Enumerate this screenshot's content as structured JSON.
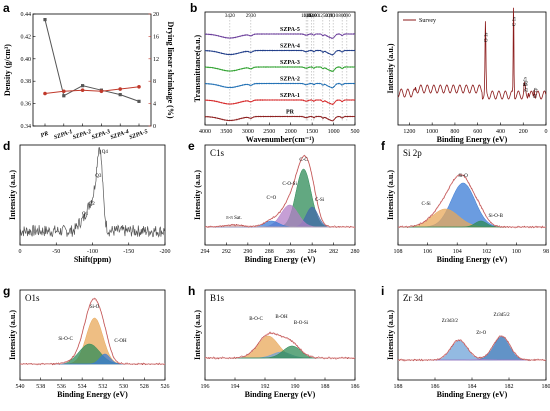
{
  "chart_data": [
    {
      "panel": "a",
      "type": "line",
      "categories": [
        "PR",
        "SZPA-1",
        "SZPA-2",
        "SZPA-3",
        "SZPA-4",
        "SZPA-5"
      ],
      "ylabel": "Density (g/cm³)",
      "y2label": "Drying linear shrinkage (%)",
      "ylim": [
        0.34,
        0.44
      ],
      "y2lim": [
        0,
        20
      ],
      "yticks": [
        "0.34",
        "0.36",
        "0.38",
        "0.40",
        "0.42",
        "0.44"
      ],
      "y2ticks": [
        "0",
        "4",
        "8",
        "12",
        "16",
        "20"
      ],
      "series": [
        {
          "axis": "left",
          "color": "#555555",
          "values": [
            0.435,
            0.367,
            0.376,
            0.372,
            0.368,
            0.362
          ]
        },
        {
          "axis": "right",
          "color": "#c0392b",
          "values": [
            5.8,
            6.2,
            6.4,
            6.2,
            6.6,
            7.0
          ]
        }
      ]
    },
    {
      "panel": "b",
      "type": "line",
      "xlabel": "Wavenumber(cm⁻¹)",
      "ylabel": "Transmittance(a.u.)",
      "xlim": [
        4000,
        500
      ],
      "xticks": [
        "4000",
        "3500",
        "3000",
        "2500",
        "2000",
        "1500",
        "1000",
        "500"
      ],
      "peak_labels": [
        "3420",
        "2930",
        "1640",
        "1600",
        "1510",
        "1460",
        "1250",
        "1090",
        "1010",
        "800",
        "690"
      ],
      "series": [
        {
          "name": "SZPA-5",
          "color": "#6a3d9a"
        },
        {
          "name": "SZPA-4",
          "color": "#1f3c88"
        },
        {
          "name": "SZPA-3",
          "color": "#2ca02c"
        },
        {
          "name": "SZPA-2",
          "color": "#1f6fb4"
        },
        {
          "name": "SZPA-1",
          "color": "#d62728"
        },
        {
          "name": "PR",
          "color": "#8c1d1d"
        }
      ]
    },
    {
      "panel": "c",
      "type": "line",
      "xlabel": "Binding Energy (eV)",
      "ylabel": "Intensity (a.u.)",
      "legend": "Survey",
      "xlim": [
        1300,
        0
      ],
      "xticks": [
        "1200",
        "1000",
        "800",
        "600",
        "400",
        "200",
        "0"
      ],
      "peaks": [
        {
          "label": "O 1s",
          "x": 532
        },
        {
          "label": "C 1s",
          "x": 285
        },
        {
          "label": "Zr 3d",
          "x": 182
        },
        {
          "label": "B 1s",
          "x": 191
        },
        {
          "label": "Si 2p",
          "x": 103
        }
      ]
    },
    {
      "panel": "d",
      "type": "line",
      "xlabel": "Shift(ppm)",
      "ylabel": "Intensity (a.u.)",
      "xlim": [
        0,
        -200
      ],
      "xticks": [
        "0",
        "-50",
        "-100",
        "-150",
        "-200"
      ],
      "peak_labels": [
        "Q4",
        "Q3",
        "Q2",
        "Q1"
      ]
    },
    {
      "panel": "e",
      "type": "line",
      "title": "C1s",
      "xlabel": "Binding Energy (eV)",
      "ylabel": "Intensity (a.u.)",
      "xlim": [
        294,
        280
      ],
      "xticks": [
        "294",
        "292",
        "290",
        "288",
        "286",
        "284",
        "282",
        "280"
      ],
      "components": [
        {
          "label": "C-C",
          "x": 284.8
        },
        {
          "label": "C-Si",
          "x": 284.0
        },
        {
          "label": "C-O-Si",
          "x": 286.1
        },
        {
          "label": "C=O",
          "x": 287.8
        },
        {
          "label": "π-π Sat.",
          "x": 291.3
        }
      ]
    },
    {
      "panel": "f",
      "type": "line",
      "title": "Si 2p",
      "xlabel": "Binding Energy (eV)",
      "ylabel": "Intensity (a.u.)",
      "xlim": [
        108,
        98
      ],
      "xticks": [
        "108",
        "106",
        "104",
        "102",
        "100",
        "98"
      ],
      "components": [
        {
          "label": "Si-O",
          "x": 103.6
        },
        {
          "label": "C-Si",
          "x": 104.8
        },
        {
          "label": "Si-O-B",
          "x": 102.4
        }
      ]
    },
    {
      "panel": "g",
      "type": "line",
      "title": "O1s",
      "xlabel": "Binding Energy (eV)",
      "ylabel": "Intensity (a.u.)",
      "xlim": [
        540,
        526
      ],
      "xticks": [
        "540",
        "538",
        "536",
        "534",
        "532",
        "530",
        "528",
        "526"
      ],
      "components": [
        {
          "label": "Si-O",
          "x": 532.8
        },
        {
          "label": "Si-O-C",
          "x": 533.3
        },
        {
          "label": "C-OH",
          "x": 531.8
        }
      ]
    },
    {
      "panel": "h",
      "type": "line",
      "title": "B1s",
      "xlabel": "Binding Energy (eV)",
      "ylabel": "Intensity (a.u.)",
      "xlim": [
        196,
        186
      ],
      "xticks": [
        "196",
        "194",
        "192",
        "190",
        "188",
        "186"
      ],
      "components": [
        {
          "label": "B-O-C",
          "x": 191.8
        },
        {
          "label": "B-OH",
          "x": 190.9
        },
        {
          "label": "B-O-Si",
          "x": 190.2
        }
      ]
    },
    {
      "panel": "i",
      "type": "line",
      "title": "Zr 3d",
      "xlabel": "Binding Energy (eV)",
      "ylabel": "Intensity (a.u.)",
      "xlim": [
        188,
        180
      ],
      "xticks": [
        "188",
        "186",
        "184",
        "182",
        "180"
      ],
      "components": [
        {
          "label": "Zr3d3/2",
          "x": 184.7
        },
        {
          "label": "Zr3d5/2",
          "x": 182.4
        },
        {
          "label": "Zr-O",
          "x": 183.5
        }
      ]
    }
  ]
}
